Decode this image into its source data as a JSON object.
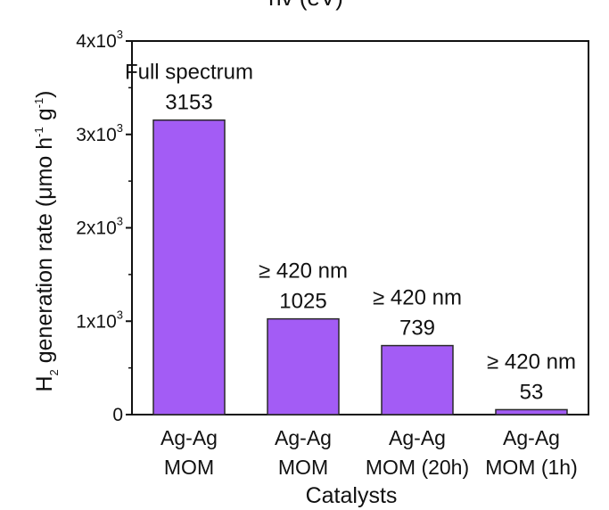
{
  "top_label": "hv (eV)",
  "chart_data": {
    "type": "bar",
    "categories": [
      [
        "Ag-Ag",
        "MOM"
      ],
      [
        "Ag-Ag",
        "MOM"
      ],
      [
        "Ag-Ag",
        "MOM (20h)"
      ],
      [
        "Ag-Ag",
        "MOM (1h)"
      ]
    ],
    "values": [
      3153,
      1025,
      739,
      53
    ],
    "value_labels": [
      "3153",
      "1025",
      "739",
      "53"
    ],
    "condition_labels": [
      "Full spectrum",
      "≥ 420 nm",
      "≥ 420 nm",
      "≥ 420 nm"
    ],
    "xlabel": "Catalysts",
    "ylabel": {
      "base": "H",
      "sub": "2",
      "rest": " generation rate (μmo h",
      "sup1": "-1",
      "mid": " g",
      "sup2": "-1",
      "end": ")"
    },
    "ylim": [
      0,
      4000
    ],
    "yticks": [
      {
        "value": 0,
        "mantissa": "0",
        "exp": ""
      },
      {
        "value": 1000,
        "mantissa": "1x10",
        "exp": "3"
      },
      {
        "value": 2000,
        "mantissa": "2x10",
        "exp": "3"
      },
      {
        "value": 3000,
        "mantissa": "3x10",
        "exp": "3"
      },
      {
        "value": 4000,
        "mantissa": "4x10",
        "exp": "3"
      }
    ],
    "colors": {
      "bar_fill": "#a35cf5",
      "bar_stroke": "#2a2a2a",
      "axis": "#111111"
    },
    "grid": false
  }
}
